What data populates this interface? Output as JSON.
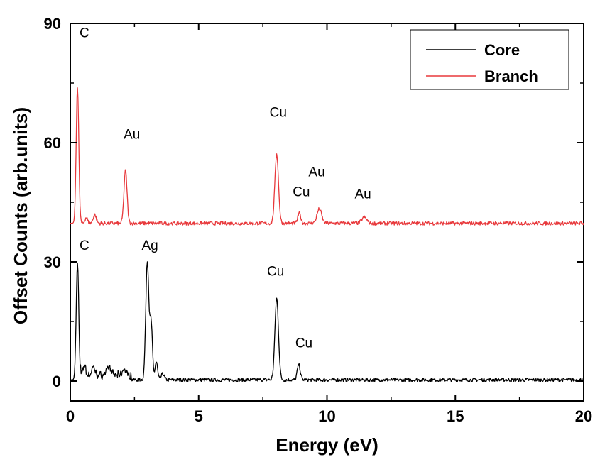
{
  "chart_data": {
    "type": "line",
    "title": "",
    "xlabel": "Energy (eV)",
    "ylabel": "Offset Counts  (arb.units)",
    "xlim": [
      0,
      20
    ],
    "ylim": [
      -5,
      90
    ],
    "xticks": [
      0,
      5,
      10,
      15,
      20
    ],
    "yticks": [
      0,
      30,
      60,
      90
    ],
    "grid": false,
    "legend_position": "top-right",
    "series": [
      {
        "name": "Core",
        "color": "#000000",
        "baseline": 0.3,
        "peaks": [
          {
            "x": 0.28,
            "y": 29.5,
            "w": 0.05
          },
          {
            "x": 0.55,
            "y": 2.5,
            "w": 0.05
          },
          {
            "x": 0.9,
            "y": 2.0,
            "w": 0.06
          },
          {
            "x": 1.5,
            "y": 2.2,
            "w": 0.08
          },
          {
            "x": 2.1,
            "y": 1.6,
            "w": 0.06
          },
          {
            "x": 3.0,
            "y": 30.0,
            "w": 0.06
          },
          {
            "x": 3.15,
            "y": 14.0,
            "w": 0.05
          },
          {
            "x": 3.35,
            "y": 4.5,
            "w": 0.05
          },
          {
            "x": 3.6,
            "y": 1.5,
            "w": 0.06
          },
          {
            "x": 8.04,
            "y": 20.5,
            "w": 0.07
          },
          {
            "x": 8.9,
            "y": 3.8,
            "w": 0.06
          }
        ]
      },
      {
        "name": "Branch",
        "color": "#e8393c",
        "baseline": 39.7,
        "peaks": [
          {
            "x": 0.28,
            "y": 34.5,
            "w": 0.05
          },
          {
            "x": 0.62,
            "y": 1.5,
            "w": 0.05
          },
          {
            "x": 0.95,
            "y": 2.2,
            "w": 0.06
          },
          {
            "x": 2.15,
            "y": 13.3,
            "w": 0.06
          },
          {
            "x": 8.04,
            "y": 17.5,
            "w": 0.07
          },
          {
            "x": 8.92,
            "y": 2.5,
            "w": 0.06
          },
          {
            "x": 9.7,
            "y": 3.6,
            "w": 0.09
          },
          {
            "x": 11.45,
            "y": 1.5,
            "w": 0.1
          }
        ]
      }
    ],
    "annotations": [
      {
        "text": "C",
        "x": 0.55,
        "y": 86.5
      },
      {
        "text": "Au",
        "x": 2.4,
        "y": 61.0
      },
      {
        "text": "Cu",
        "x": 8.1,
        "y": 66.5
      },
      {
        "text": "Au",
        "x": 9.6,
        "y": 51.5
      },
      {
        "text": "Cu",
        "x": 9.0,
        "y": 46.5
      },
      {
        "text": "Au",
        "x": 11.4,
        "y": 46.0
      },
      {
        "text": "C",
        "x": 0.55,
        "y": 33.0
      },
      {
        "text": "Ag",
        "x": 3.1,
        "y": 33.0
      },
      {
        "text": "Cu",
        "x": 8.0,
        "y": 26.5
      },
      {
        "text": "Cu",
        "x": 9.1,
        "y": 8.5
      }
    ]
  }
}
